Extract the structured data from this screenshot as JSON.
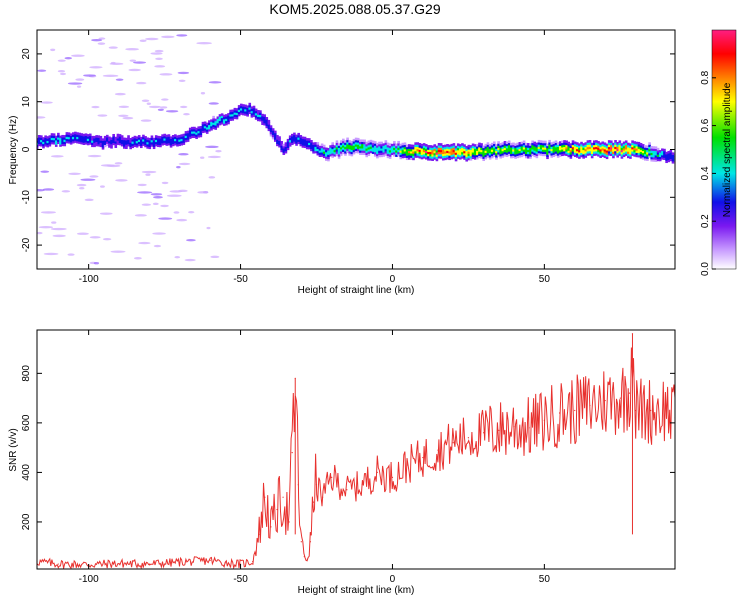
{
  "figure_title": "KOM5.2025.088.05.37.G29",
  "chart_data": [
    {
      "type": "heatmap",
      "title": "KOM5.2025.088.05.37.G29",
      "xlabel": "Height of straight line (km)",
      "ylabel": "Frequency (Hz)",
      "xlim": [
        -117,
        93
      ],
      "ylim": [
        -25,
        25
      ],
      "xticks": [
        -100,
        -50,
        0,
        50
      ],
      "yticks": [
        -20,
        -10,
        0,
        10,
        20
      ],
      "colorbar": {
        "label": "Normalized spectral amplitude",
        "range": [
          0,
          1
        ],
        "ticks": [
          0.0,
          0.2,
          0.4,
          0.6,
          0.8
        ],
        "colors": [
          "#ffffff",
          "#c89bff",
          "#7a18f0",
          "#1010e8",
          "#00e6e6",
          "#00e000",
          "#ffff00",
          "#ff8000",
          "#ff0000",
          "#ff1e82"
        ]
      },
      "ridge": {
        "x": [
          -117,
          -110,
          -105,
          -100,
          -95,
          -90,
          -85,
          -80,
          -75,
          -70,
          -65,
          -60,
          -55,
          -50,
          -47,
          -45,
          -42,
          -40,
          -38,
          -36,
          -33,
          -30,
          -27,
          -24,
          -21,
          -18,
          -15,
          -10,
          -5,
          0,
          10,
          20,
          30,
          40,
          50,
          60,
          70,
          80,
          85,
          88,
          90,
          93
        ],
        "frequency": [
          1.5,
          2.0,
          2.2,
          2.2,
          1.5,
          1.8,
          1.5,
          1.6,
          1.8,
          2.0,
          3.5,
          5.0,
          6.5,
          8.0,
          8.5,
          7.5,
          6.0,
          4.0,
          2.0,
          0.0,
          2.0,
          2.0,
          1.0,
          -0.5,
          -0.5,
          0.0,
          0.5,
          0.5,
          0.0,
          0.0,
          -0.5,
          -0.5,
          -0.5,
          0.0,
          0.0,
          0.0,
          0.0,
          0.0,
          -0.5,
          -1.0,
          -1.5,
          -1.5
        ],
        "amplitude": [
          0.3,
          0.35,
          0.3,
          0.3,
          0.25,
          0.25,
          0.3,
          0.3,
          0.3,
          0.3,
          0.3,
          0.35,
          0.35,
          0.3,
          0.3,
          0.3,
          0.25,
          0.25,
          0.25,
          0.25,
          0.3,
          0.3,
          0.3,
          0.35,
          0.4,
          0.45,
          0.5,
          0.5,
          0.4,
          0.4,
          0.85,
          0.9,
          0.6,
          0.55,
          0.55,
          0.75,
          0.9,
          0.8,
          0.5,
          0.35,
          0.3,
          0.3
        ]
      }
    },
    {
      "type": "line",
      "xlabel": "Height of straight line (km)",
      "ylabel": "SNR (v/v)",
      "xlim": [
        -117,
        93
      ],
      "ylim": [
        10,
        975
      ],
      "xticks": [
        -100,
        -50,
        0,
        50
      ],
      "yticks": [
        200,
        400,
        600,
        800
      ],
      "series": [
        {
          "color": "#e8312e",
          "x": [
            -117,
            -110,
            -100,
            -90,
            -80,
            -70,
            -60,
            -55,
            -50,
            -46,
            -44,
            -42,
            -40,
            -38,
            -36,
            -34,
            -33,
            -32,
            -31,
            -30,
            -29,
            -28,
            -27,
            -26,
            -25,
            -23,
            -20,
            -15,
            -10,
            -5,
            0,
            5,
            10,
            15,
            20,
            25,
            30,
            35,
            40,
            45,
            50,
            55,
            60,
            65,
            70,
            75,
            78,
            79,
            80,
            85,
            90,
            93
          ],
          "y": [
            40,
            30,
            28,
            32,
            30,
            38,
            45,
            35,
            30,
            40,
            150,
            300,
            180,
            250,
            300,
            200,
            480,
            780,
            350,
            120,
            60,
            50,
            120,
            280,
            350,
            300,
            380,
            330,
            350,
            400,
            380,
            430,
            460,
            490,
            520,
            540,
            560,
            570,
            585,
            580,
            610,
            640,
            650,
            670,
            690,
            700,
            720,
            960,
            650,
            650,
            660,
            620
          ]
        }
      ]
    }
  ]
}
